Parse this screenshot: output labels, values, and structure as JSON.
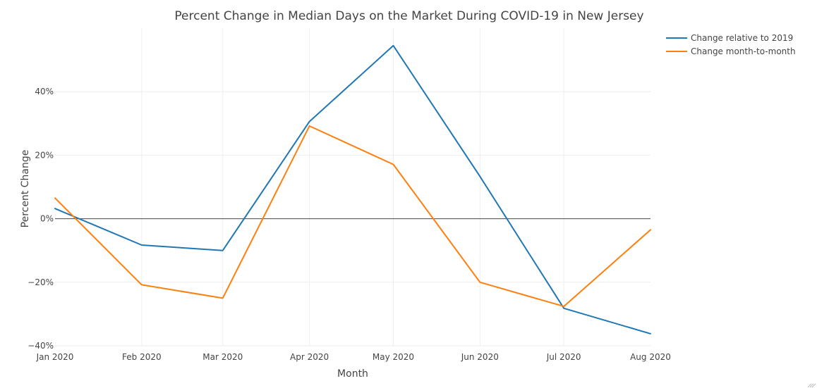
{
  "chart_data": {
    "type": "line",
    "title": "Percent Change in Median Days on the Market During COVID-19 in New Jersey",
    "xlabel": "Month",
    "ylabel": "Percent Change",
    "x": [
      "2020-01-01",
      "2020-02-01",
      "2020-03-01",
      "2020-04-01",
      "2020-05-01",
      "2020-06-01",
      "2020-07-01",
      "2020-08-01"
    ],
    "x_tick_labels": [
      "Jan 2020",
      "Feb 2020",
      "Mar 2020",
      "Apr 2020",
      "May 2020",
      "Jun 2020",
      "Jul 2020",
      "Aug 2020"
    ],
    "y_ticks": [
      -40,
      -20,
      0,
      20,
      40
    ],
    "y_tick_labels": [
      "−40%",
      "−20%",
      "0%",
      "20%",
      "40%"
    ],
    "ylim": [
      -40,
      60
    ],
    "grid": true,
    "zero_line": true,
    "legend_position": "top-right",
    "series": [
      {
        "name": "Change relative to 2019",
        "color": "#1f77b4",
        "values": [
          3.2,
          -8.3,
          -10.0,
          30.6,
          54.5,
          13.3,
          -28.2,
          -36.2
        ]
      },
      {
        "name": "Change month-to-month",
        "color": "#ff7f0e",
        "values": [
          6.5,
          -20.8,
          -25.0,
          29.2,
          17.1,
          -20.0,
          -27.6,
          -3.5
        ]
      }
    ]
  }
}
